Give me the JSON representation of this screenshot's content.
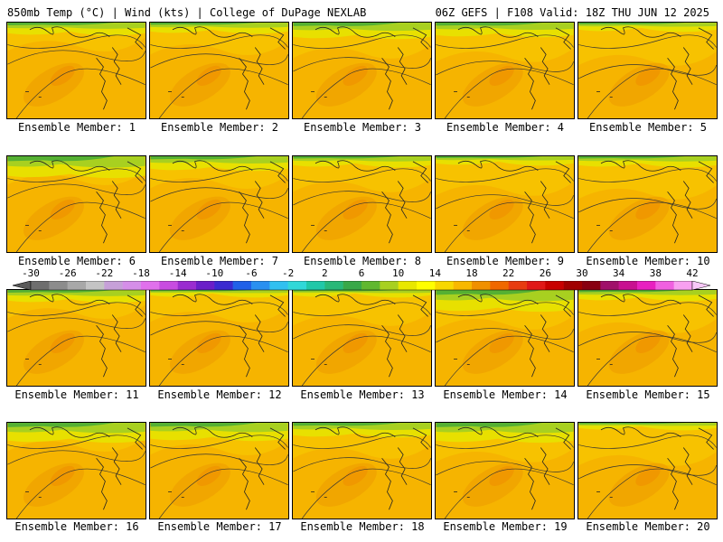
{
  "header": {
    "left": "850mb Temp (°C) | Wind (kts) | College of DuPage NEXLAB",
    "right": "06Z GEFS | F108 Valid: 18Z THU JUN 12 2025"
  },
  "panels": [
    {
      "label": "Ensemble Member: 1"
    },
    {
      "label": "Ensemble Member: 2"
    },
    {
      "label": "Ensemble Member: 3"
    },
    {
      "label": "Ensemble Member: 4"
    },
    {
      "label": "Ensemble Member: 5"
    },
    {
      "label": "Ensemble Member: 6"
    },
    {
      "label": "Ensemble Member: 7"
    },
    {
      "label": "Ensemble Member: 8"
    },
    {
      "label": "Ensemble Member: 9"
    },
    {
      "label": "Ensemble Member: 10"
    },
    {
      "label": "Ensemble Member: 11"
    },
    {
      "label": "Ensemble Member: 12"
    },
    {
      "label": "Ensemble Member: 13"
    },
    {
      "label": "Ensemble Member: 14"
    },
    {
      "label": "Ensemble Member: 15"
    },
    {
      "label": "Ensemble Member: 16"
    },
    {
      "label": "Ensemble Member: 17"
    },
    {
      "label": "Ensemble Member: 18"
    },
    {
      "label": "Ensemble Member: 19"
    },
    {
      "label": "Ensemble Member: 20"
    }
  ],
  "colorbar": {
    "ticks": [
      "-30",
      "-26",
      "-22",
      "-18",
      "-14",
      "-10",
      "-6",
      "-2",
      "2",
      "6",
      "10",
      "14",
      "18",
      "22",
      "26",
      "30",
      "34",
      "38",
      "42"
    ],
    "colors": [
      "#6e6e6e",
      "#8c8c8c",
      "#a8a8a8",
      "#c4c4c4",
      "#c6a0d8",
      "#d58ee8",
      "#e070ec",
      "#c84ce0",
      "#9a2cd0",
      "#6a1ec8",
      "#3a2ad0",
      "#2060e8",
      "#2a90f0",
      "#30c0f0",
      "#30d8d8",
      "#20c8a8",
      "#28b878",
      "#38a848",
      "#60b830",
      "#a8d020",
      "#e8e800",
      "#ffff00",
      "#f8d800",
      "#f8b800",
      "#f09000",
      "#f06800",
      "#e83c10",
      "#e01818",
      "#c80000",
      "#a00000",
      "#880010",
      "#a0106a",
      "#c81090",
      "#e820c0",
      "#f060e0",
      "#f8a0f0"
    ]
  }
}
